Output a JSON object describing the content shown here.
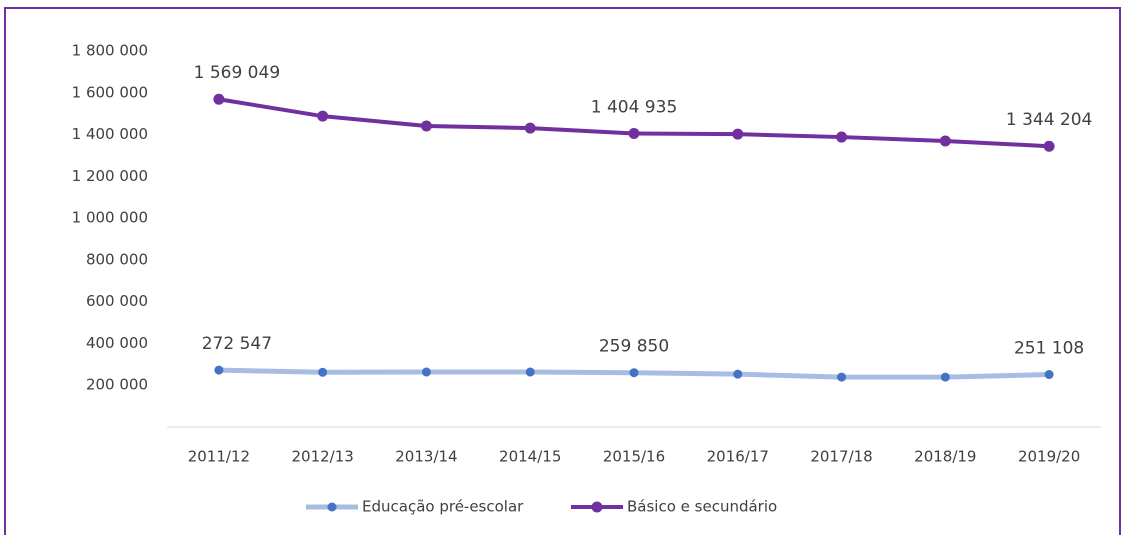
{
  "chart_data": {
    "type": "line",
    "categories": [
      "2011/12",
      "2012/13",
      "2013/14",
      "2014/15",
      "2015/16",
      "2016/17",
      "2017/18",
      "2018/19",
      "2019/20"
    ],
    "series": [
      {
        "name": "Educação pré-escolar",
        "color": "#a9bde3",
        "marker_color": "#4472c4",
        "values": [
          272547,
          262000,
          263000,
          263000,
          259850,
          253000,
          239000,
          239000,
          251108
        ],
        "value_labels": [
          "272 547",
          null,
          null,
          null,
          "259 850",
          null,
          null,
          null,
          "251 108"
        ]
      },
      {
        "name": "Básico e secundário",
        "color": "#7030a0",
        "marker_color": "#7030a0",
        "values": [
          1569049,
          1488000,
          1441000,
          1431000,
          1404935,
          1402000,
          1388000,
          1369000,
          1344204
        ],
        "value_labels": [
          "1 569 049",
          null,
          null,
          null,
          "1 404 935",
          null,
          null,
          null,
          "1 344 204"
        ]
      }
    ],
    "ylim": [
      0,
      1800000
    ],
    "yticks": [
      {
        "value": 200000,
        "label": "200 000"
      },
      {
        "value": 400000,
        "label": "400 000"
      },
      {
        "value": 600000,
        "label": "600 000"
      },
      {
        "value": 800000,
        "label": "800 000"
      },
      {
        "value": 1000000,
        "label": "1 000 000"
      },
      {
        "value": 1200000,
        "label": "1 200 000"
      },
      {
        "value": 1400000,
        "label": "1 400 000"
      },
      {
        "value": 1600000,
        "label": "1 600 000"
      },
      {
        "value": 1800000,
        "label": "1 800 000"
      }
    ],
    "grid": false,
    "legend": "bottom"
  }
}
